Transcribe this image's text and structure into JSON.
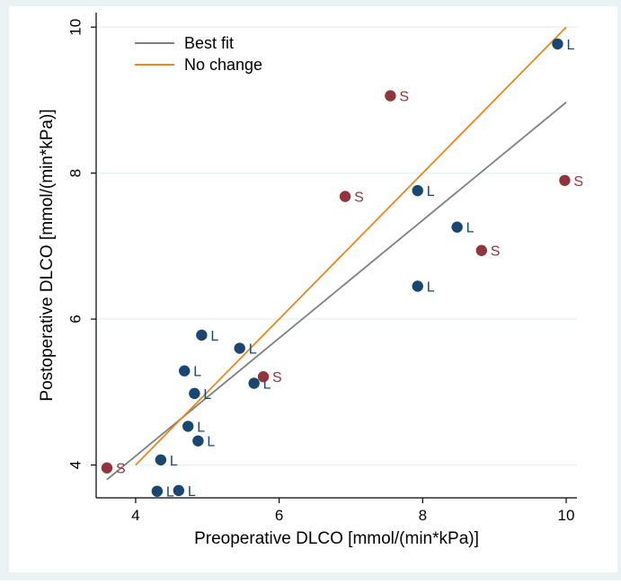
{
  "chart_data": {
    "type": "scatter",
    "title": "",
    "xlabel": "Preoperative DLCO [mmol/(min*kPa)]",
    "ylabel": "Postoperative DLCO [mmol/(min*kPa)]",
    "xlim": [
      3.45,
      10.15
    ],
    "ylim": [
      3.55,
      10.2
    ],
    "xticks": [
      4,
      6,
      8,
      10
    ],
    "yticks": [
      4,
      6,
      8,
      10
    ],
    "grid": true,
    "legend_position": "top-left",
    "colors": {
      "background_outer": "#eaf2f3",
      "plot_background": "#ffffff",
      "grid": "#eaf2f3",
      "axis": "#000000",
      "best_fit": "#7f7f7f",
      "no_change": "#e8871e",
      "group_L": "#1a476f",
      "group_S": "#90353b"
    },
    "legend": [
      {
        "name": "Best fit",
        "color": "#7f7f7f"
      },
      {
        "name": "No change",
        "color": "#e8871e"
      }
    ],
    "lines": [
      {
        "name": "Best fit",
        "x": [
          3.6,
          10.0
        ],
        "y": [
          3.8,
          8.97
        ]
      },
      {
        "name": "No change",
        "x": [
          4.0,
          10.0
        ],
        "y": [
          4.0,
          10.0
        ]
      }
    ],
    "points": [
      {
        "x": 3.6,
        "y": 3.96,
        "label": "S"
      },
      {
        "x": 4.3,
        "y": 3.64,
        "label": "L"
      },
      {
        "x": 4.6,
        "y": 3.65,
        "label": "L"
      },
      {
        "x": 4.35,
        "y": 4.07,
        "label": "L"
      },
      {
        "x": 4.87,
        "y": 4.33,
        "label": "L"
      },
      {
        "x": 4.73,
        "y": 4.53,
        "label": "L"
      },
      {
        "x": 4.82,
        "y": 4.98,
        "label": "L"
      },
      {
        "x": 4.68,
        "y": 5.29,
        "label": "L"
      },
      {
        "x": 4.92,
        "y": 5.78,
        "label": "L"
      },
      {
        "x": 5.45,
        "y": 5.6,
        "label": "L"
      },
      {
        "x": 5.65,
        "y": 5.12,
        "label": "L"
      },
      {
        "x": 5.78,
        "y": 5.21,
        "label": "S"
      },
      {
        "x": 6.92,
        "y": 7.68,
        "label": "S"
      },
      {
        "x": 7.55,
        "y": 9.06,
        "label": "S"
      },
      {
        "x": 7.93,
        "y": 7.76,
        "label": "L"
      },
      {
        "x": 7.93,
        "y": 6.45,
        "label": "L"
      },
      {
        "x": 8.48,
        "y": 7.26,
        "label": "L"
      },
      {
        "x": 8.82,
        "y": 6.94,
        "label": "S"
      },
      {
        "x": 9.88,
        "y": 9.77,
        "label": "L"
      },
      {
        "x": 9.98,
        "y": 7.9,
        "label": "S"
      }
    ]
  }
}
